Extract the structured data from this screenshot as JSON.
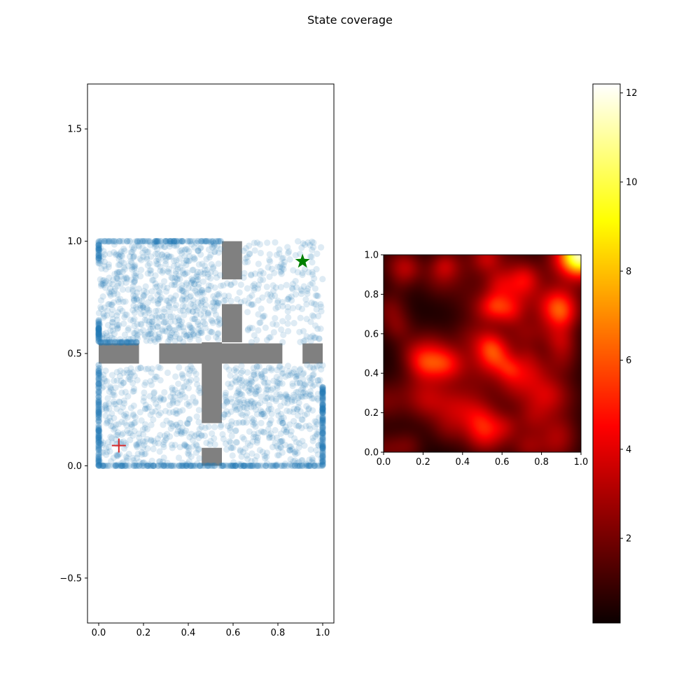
{
  "figure": {
    "title": "State coverage"
  },
  "chart_data": [
    {
      "type": "scatter",
      "title": "",
      "xlabel": "",
      "ylabel": "",
      "xlim": [
        -0.05,
        1.05
      ],
      "ylim": [
        -0.7,
        1.7
      ],
      "xticks": [
        "0.0",
        "0.2",
        "0.4",
        "0.6",
        "0.8",
        "1.0"
      ],
      "yticks": [
        "−0.5",
        "0.0",
        "0.5",
        "1.0",
        "1.5"
      ],
      "grid": false,
      "walls": [
        {
          "x0": 0.55,
          "x1": 0.64,
          "y0": 0.83,
          "y1": 1.0
        },
        {
          "x0": 0.55,
          "x1": 0.64,
          "y0": 0.55,
          "y1": 0.72
        },
        {
          "x0": 0.46,
          "x1": 0.55,
          "y0": 0.19,
          "y1": 0.55
        },
        {
          "x0": 0.46,
          "x1": 0.55,
          "y0": 0.0,
          "y1": 0.08
        },
        {
          "x0": 0.0,
          "x1": 0.18,
          "y0": 0.455,
          "y1": 0.545
        },
        {
          "x0": 0.27,
          "x1": 0.82,
          "y0": 0.455,
          "y1": 0.545
        },
        {
          "x0": 0.91,
          "x1": 1.0,
          "y0": 0.455,
          "y1": 0.545
        }
      ],
      "wall_color": "#808080",
      "points_color": "#1f77b4",
      "points_alpha": 0.15,
      "start": {
        "x": 0.09,
        "y": 0.09,
        "marker": "plus",
        "color": "#d62728"
      },
      "goal": {
        "x": 0.91,
        "y": 0.91,
        "marker": "star",
        "color": "#008000"
      }
    },
    {
      "type": "heatmap",
      "title": "",
      "xlim": [
        0.0,
        1.0
      ],
      "ylim": [
        0.0,
        1.0
      ],
      "xticks": [
        "0.0",
        "0.2",
        "0.4",
        "0.6",
        "0.8",
        "1.0"
      ],
      "yticks": [
        "0.0",
        "0.2",
        "0.4",
        "0.6",
        "0.8",
        "1.0"
      ],
      "colormap": "hot",
      "hotspots": [
        {
          "x": 1.0,
          "y": 1.0,
          "value": 12.1
        },
        {
          "x": 0.28,
          "y": 0.45,
          "value": 3.5
        },
        {
          "x": 0.57,
          "y": 0.48,
          "value": 3.7
        },
        {
          "x": 0.03,
          "y": 0.73,
          "value": 2.8
        },
        {
          "x": 0.72,
          "y": 0.6,
          "value": 2.6
        },
        {
          "x": 0.22,
          "y": 0.25,
          "value": 1.8
        },
        {
          "x": 0.5,
          "y": 0.08,
          "value": 1.9
        },
        {
          "x": 0.9,
          "y": 0.7,
          "value": 2.2
        },
        {
          "x": 0.08,
          "y": 0.95,
          "value": 1.8
        },
        {
          "x": 0.4,
          "y": 0.6,
          "value": 1.6
        }
      ]
    },
    {
      "type": "colorbar",
      "range": [
        0.1,
        12.2
      ],
      "ticks": [
        2,
        4,
        6,
        8,
        10,
        12
      ],
      "tick_labels": [
        "2",
        "4",
        "6",
        "8",
        "10",
        "12"
      ],
      "colormap": "hot"
    }
  ]
}
